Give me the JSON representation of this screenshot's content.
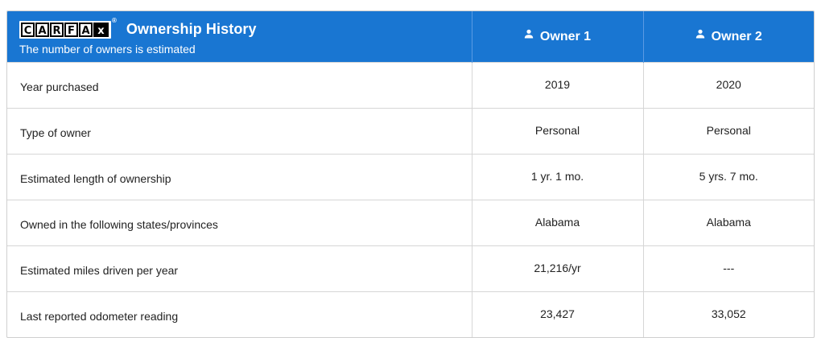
{
  "header": {
    "logo_letters": [
      "C",
      "A",
      "R",
      "F",
      "A",
      "x"
    ],
    "logo_reg_mark": "®",
    "title": "Ownership History",
    "subtitle": "The number of owners is estimated",
    "owners": [
      {
        "label": "Owner 1",
        "icon": "person-icon"
      },
      {
        "label": "Owner 2",
        "icon": "person-icon"
      }
    ]
  },
  "rows": [
    {
      "label": "Year purchased",
      "owner1": "2019",
      "owner2": "2020"
    },
    {
      "label": "Type of owner",
      "owner1": "Personal",
      "owner2": "Personal"
    },
    {
      "label": "Estimated length of ownership",
      "owner1": "1 yr. 1 mo.",
      "owner2": "5 yrs. 7 mo."
    },
    {
      "label": "Owned in the following states/provinces",
      "owner1": "Alabama",
      "owner2": "Alabama"
    },
    {
      "label": "Estimated miles driven per year",
      "owner1": "21,216/yr",
      "owner2": "---"
    },
    {
      "label": "Last reported odometer reading",
      "owner1": "23,427",
      "owner2": "33,052"
    }
  ],
  "colors": {
    "header_bg": "#1976d2",
    "header_text": "#ffffff",
    "border": "#d6d6d6",
    "body_text": "#222222"
  }
}
